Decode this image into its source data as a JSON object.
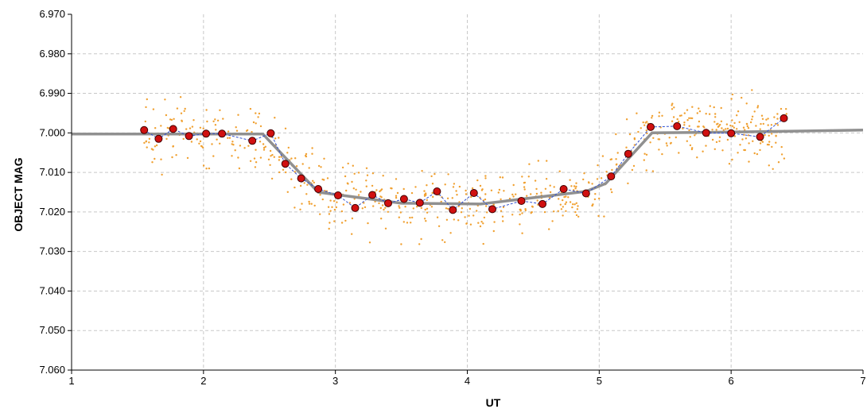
{
  "chart_data": {
    "type": "scatter",
    "title": "",
    "xlabel": "UT",
    "ylabel": "OBJECT MAG",
    "xlim": [
      1,
      7
    ],
    "ylim": [
      6.97,
      7.06
    ],
    "y_inverted": true,
    "x_ticks": [
      "1",
      "2",
      "3",
      "4",
      "5",
      "6",
      "7"
    ],
    "y_ticks": [
      "6.970",
      "6.980",
      "6.990",
      "7.000",
      "7.010",
      "7.020",
      "7.030",
      "7.040",
      "7.050",
      "7.060"
    ],
    "grid": true,
    "colors": {
      "raw": "#f0a030",
      "binned": "#d01010",
      "binned_edge": "#400000",
      "binned_line": "#3050d0",
      "model": "#909090",
      "grid": "#c8c8c8"
    },
    "series": [
      {
        "role": "binned",
        "x": [
          1.55,
          1.66,
          1.77,
          1.89,
          2.02,
          2.14,
          2.37,
          2.51,
          2.62,
          2.74,
          2.87,
          3.02,
          3.15,
          3.28,
          3.4,
          3.52,
          3.64,
          3.77,
          3.89,
          4.05,
          4.19,
          4.41,
          4.57,
          4.73,
          4.9,
          5.09,
          5.22,
          5.39,
          5.59,
          5.81,
          6.0,
          6.22,
          6.4
        ],
        "y": [
          6.9993,
          7.0015,
          6.999,
          7.0008,
          7.0002,
          7.0002,
          7.002,
          7.0001,
          7.0078,
          7.0115,
          7.0142,
          7.0158,
          7.019,
          7.0157,
          7.0178,
          7.0167,
          7.0177,
          7.0148,
          7.0195,
          7.0152,
          7.0193,
          7.0172,
          7.018,
          7.0142,
          7.0153,
          7.011,
          7.0053,
          6.9985,
          6.9983,
          7.0,
          7.0001,
          7.001,
          6.9963
        ]
      },
      {
        "role": "model",
        "x": [
          1.0,
          2.45,
          2.87,
          3.5,
          4.1,
          4.9,
          5.05,
          5.4,
          6.0,
          7.0
        ],
        "y": [
          7.0003,
          7.0003,
          7.015,
          7.0178,
          7.018,
          7.0148,
          7.0128,
          7.0,
          6.9998,
          6.9993
        ]
      }
    ]
  }
}
